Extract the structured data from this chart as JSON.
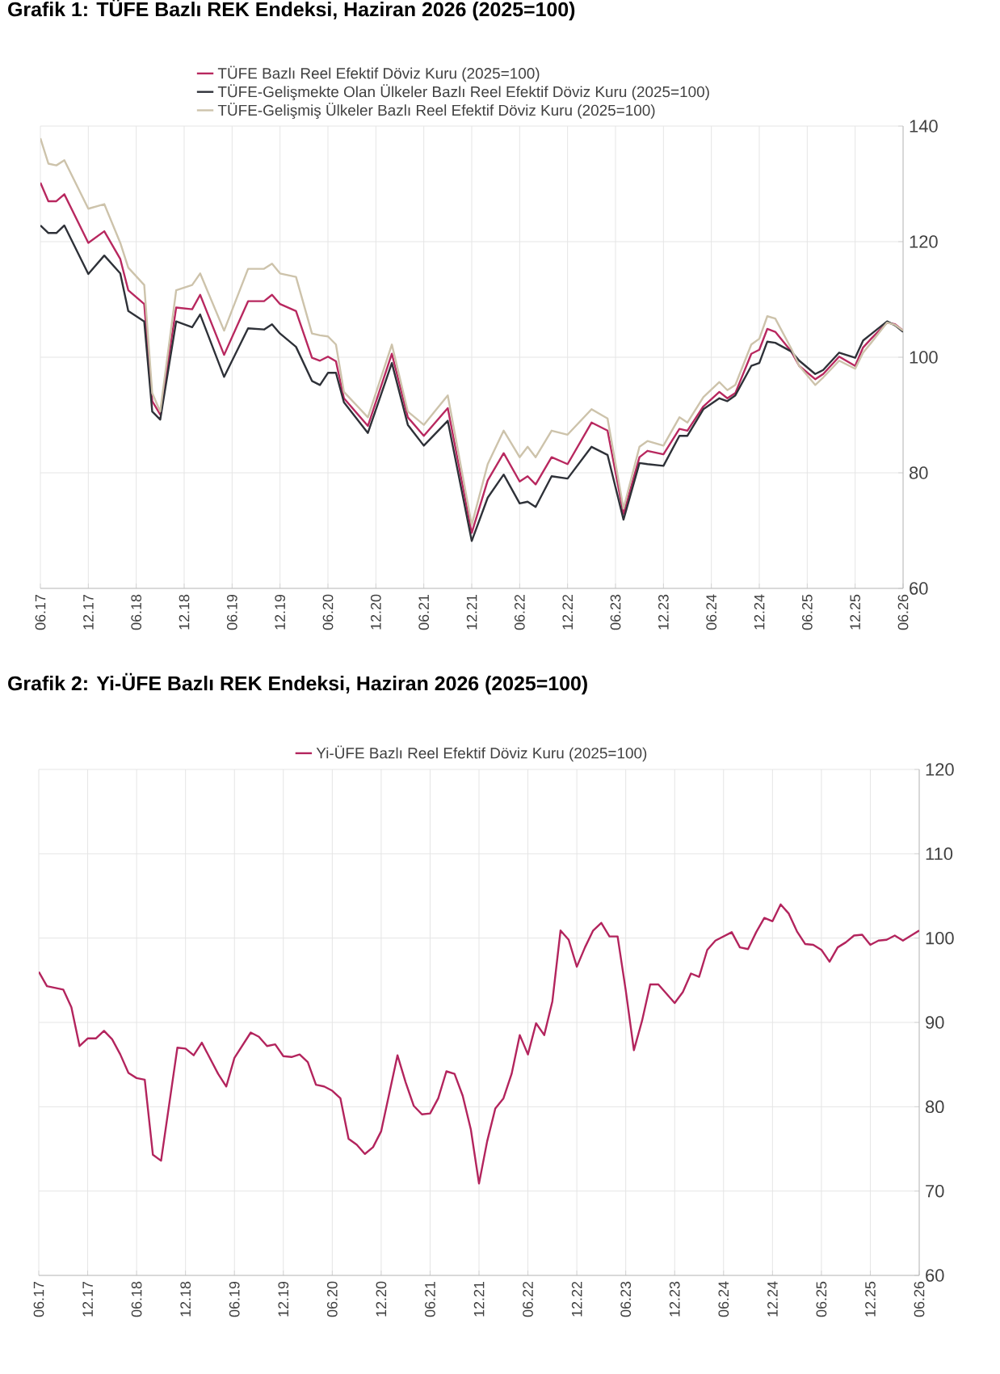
{
  "chart_data": [
    {
      "type": "line",
      "title": "Grafik 1: TÜFE Bazlı REK Endeksi, Haziran 2026 (2025=100)",
      "x": [
        "2017-06",
        "2017-07",
        "2017-08",
        "2017-09",
        "2017-12",
        "2018-02",
        "2018-04",
        "2018-05",
        "2018-07",
        "2018-08",
        "2018-09",
        "2018-11",
        "2019-01",
        "2019-02",
        "2019-05",
        "2019-08",
        "2019-10",
        "2019-11",
        "2019-12",
        "2020-02",
        "2020-04",
        "2020-05",
        "2020-06",
        "2020-07",
        "2020-08",
        "2020-11",
        "2021-02",
        "2021-04",
        "2021-06",
        "2021-09",
        "2021-12",
        "2022-02",
        "2022-04",
        "2022-06",
        "2022-07",
        "2022-08",
        "2022-10",
        "2022-12",
        "2023-03",
        "2023-05",
        "2023-07",
        "2023-09",
        "2023-10",
        "2023-12",
        "2024-02",
        "2024-03",
        "2024-05",
        "2024-07",
        "2024-08",
        "2024-09",
        "2024-11",
        "2024-12",
        "2025-01",
        "2025-02",
        "2025-04",
        "2025-05",
        "2025-07",
        "2025-08",
        "2025-10",
        "2025-12",
        "2026-01",
        "2026-02",
        "2026-04",
        "2026-05",
        "2026-06"
      ],
      "series": [
        {
          "name": "TÜFE  Bazlı Reel Efektif Döviz Kuru (2025=100)",
          "color": "#b8285f",
          "values": [
            130.2,
            127,
            127,
            128.2,
            119.8,
            121.8,
            117,
            111.6,
            109.2,
            92.4,
            90.1,
            108.6,
            108.3,
            110.8,
            100.4,
            109.7,
            109.7,
            110.8,
            109.2,
            108,
            99.9,
            99.4,
            100.1,
            99.3,
            92.9,
            88.1,
            100.6,
            89.6,
            86.4,
            91.2,
            69.6,
            78.7,
            83.4,
            78.5,
            79.4,
            78.0,
            82.7,
            81.5,
            88.7,
            87.3,
            72.9,
            82.7,
            83.8,
            83.2,
            87.6,
            87.3,
            91.5,
            94.0,
            92.9,
            93.8,
            100.6,
            101.3,
            104.9,
            104.4,
            101.0,
            98.5,
            96.2,
            97.1,
            100.1,
            98.5,
            101.7,
            103.2,
            106,
            105.7,
            104.6
          ]
        },
        {
          "name": "TÜFE-Gelişmekte Olan Ülkeler Bazlı Reel Efektif Döviz Kuru (2025=100)",
          "color": "#2e3138",
          "values": [
            122.8,
            121.5,
            121.5,
            122.8,
            114.4,
            117.6,
            114.5,
            108,
            106.2,
            90.6,
            89.2,
            106.2,
            105.2,
            107.4,
            96.6,
            105.0,
            104.8,
            105.7,
            104.1,
            101.8,
            95.9,
            95.2,
            97.3,
            97.3,
            92.2,
            86.9,
            99.0,
            88.3,
            84.7,
            89.0,
            68.2,
            75.7,
            79.7,
            74.7,
            75.0,
            74.1,
            79.4,
            79.0,
            84.5,
            83.1,
            71.9,
            81.7,
            81.5,
            81.2,
            86.4,
            86.4,
            91,
            92.9,
            92.4,
            93.4,
            98.5,
            99,
            102.7,
            102.5,
            101.0,
            99.4,
            97.1,
            97.8,
            100.8,
            99.9,
            102.9,
            104.0,
            106.2,
            105.5,
            104.4
          ]
        },
        {
          "name": "TÜFE-Gelişmiş Ülkeler Bazlı Reel Efektif Döviz Kuru (2025=100)",
          "color": "#cdc3ab",
          "values": [
            137.9,
            133.5,
            133.2,
            134.1,
            125.7,
            126.5,
            119.8,
            115.5,
            112.5,
            93.8,
            90.6,
            111.6,
            112.5,
            114.5,
            104.6,
            115.3,
            115.3,
            116.2,
            114.5,
            113.9,
            104.1,
            103.8,
            103.6,
            102.2,
            94.0,
            89.6,
            102.2,
            90.6,
            88.3,
            93.4,
            71,
            81.5,
            87.3,
            82.7,
            84.5,
            82.7,
            87.3,
            86.6,
            91.0,
            89.4,
            73.8,
            84.5,
            85.5,
            84.7,
            89.6,
            88.7,
            93.1,
            95.7,
            94.3,
            95.2,
            102.2,
            103.2,
            107.1,
            106.7,
            101.5,
            98.5,
            95.2,
            96.5,
            99.4,
            98,
            100.8,
            102.5,
            106.0,
            105.6,
            104.6
          ]
        }
      ],
      "xlim": [
        "2017-06",
        "2026-06"
      ],
      "xticks": [
        {
          "value": "2017-06",
          "label": "06.17"
        },
        {
          "value": "2017-12",
          "label": "12.17"
        },
        {
          "value": "2018-06",
          "label": "06.18"
        },
        {
          "value": "2018-12",
          "label": "12.18"
        },
        {
          "value": "2019-06",
          "label": "06.19"
        },
        {
          "value": "2019-12",
          "label": "12.19"
        },
        {
          "value": "2020-06",
          "label": "06.20"
        },
        {
          "value": "2020-12",
          "label": "12.20"
        },
        {
          "value": "2021-06",
          "label": "06.21"
        },
        {
          "value": "2021-12",
          "label": "12.21"
        },
        {
          "value": "2022-06",
          "label": "06.22"
        },
        {
          "value": "2022-12",
          "label": "12.22"
        },
        {
          "value": "2023-06",
          "label": "06.23"
        },
        {
          "value": "2023-12",
          "label": "12.23"
        },
        {
          "value": "2024-06",
          "label": "06.24"
        },
        {
          "value": "2024-12",
          "label": "12.24"
        },
        {
          "value": "2025-06",
          "label": "06.25"
        },
        {
          "value": "2025-12",
          "label": "12.25"
        },
        {
          "value": "2026-06",
          "label": "06.26"
        }
      ],
      "ylim": [
        60,
        140
      ],
      "yticks": [
        60,
        80,
        100,
        120,
        140
      ],
      "grid": true,
      "legend": "top"
    },
    {
      "type": "line",
      "title": "Grafik 2: Yi-ÜFE Bazlı REK Endeksi, Haziran 2026 (2025=100)",
      "x": [
        "2017-06",
        "2017-07",
        "2017-09",
        "2017-10",
        "2017-11",
        "2017-12",
        "2018-01",
        "2018-02",
        "2018-03",
        "2018-04",
        "2018-05",
        "2018-06",
        "2018-07",
        "2018-08",
        "2018-09",
        "2018-11",
        "2018-12",
        "2019-01",
        "2019-02",
        "2019-04",
        "2019-05",
        "2019-06",
        "2019-08",
        "2019-09",
        "2019-10",
        "2019-11",
        "2019-12",
        "2020-01",
        "2020-02",
        "2020-03",
        "2020-04",
        "2020-05",
        "2020-06",
        "2020-07",
        "2020-08",
        "2020-09",
        "2020-10",
        "2020-11",
        "2020-12",
        "2021-02",
        "2021-03",
        "2021-04",
        "2021-05",
        "2021-06",
        "2021-07",
        "2021-08",
        "2021-09",
        "2021-10",
        "2021-11",
        "2021-12",
        "2022-01",
        "2022-02",
        "2022-03",
        "2022-04",
        "2022-05",
        "2022-06",
        "2022-07",
        "2022-08",
        "2022-09",
        "2022-10",
        "2022-11",
        "2022-12",
        "2023-01",
        "2023-02",
        "2023-03",
        "2023-04",
        "2023-05",
        "2023-06",
        "2023-07",
        "2023-08",
        "2023-09",
        "2023-10",
        "2023-11",
        "2023-12",
        "2024-01",
        "2024-02",
        "2024-03",
        "2024-04",
        "2024-05",
        "2024-06",
        "2024-07",
        "2024-08",
        "2024-09",
        "2024-10",
        "2024-11",
        "2024-12",
        "2025-01",
        "2025-02",
        "2025-03",
        "2025-04",
        "2025-05",
        "2025-06",
        "2025-07",
        "2025-08",
        "2025-09",
        "2025-10",
        "2025-11",
        "2025-12",
        "2026-01",
        "2026-02",
        "2026-03",
        "2026-04",
        "2026-05",
        "2026-06"
      ],
      "series": [
        {
          "name": "Yi-ÜFE Bazlı Reel Efektif Döviz Kuru (2025=100)",
          "color": "#b3245d",
          "values": [
            96.0,
            94.3,
            93.9,
            91.8,
            87.2,
            88.1,
            88.1,
            89.0,
            88.0,
            86.2,
            84.0,
            83.4,
            83.2,
            74.3,
            73.6,
            87.0,
            86.9,
            86.1,
            87.6,
            83.9,
            82.4,
            85.8,
            88.8,
            88.3,
            87.2,
            87.4,
            86.0,
            85.9,
            86.2,
            85.3,
            82.6,
            82.4,
            81.9,
            81.0,
            76.2,
            75.5,
            74.4,
            75.2,
            77.1,
            86.1,
            82.9,
            80.1,
            79.1,
            79.2,
            81.0,
            84.2,
            83.9,
            81.3,
            77.3,
            70.9,
            75.9,
            79.8,
            81.0,
            83.9,
            88.5,
            86.2,
            89.9,
            88.5,
            92.5,
            100.9,
            99.8,
            96.6,
            98.9,
            100.9,
            101.8,
            100.2,
            100.2,
            93.8,
            86.7,
            90.2,
            94.5,
            94.5,
            93.4,
            92.3,
            93.6,
            95.8,
            95.4,
            98.6,
            99.7,
            100.2,
            100.7,
            98.9,
            98.7,
            100.7,
            102.4,
            102.0,
            104.0,
            102.9,
            100.8,
            99.3,
            99.2,
            98.6,
            97.2,
            98.9,
            99.5,
            100.3,
            100.4,
            99.2,
            99.7,
            99.8,
            100.3,
            99.7,
            100.3,
            100.9
          ]
        }
      ],
      "xlim": [
        "2017-06",
        "2026-06"
      ],
      "xticks": [
        {
          "value": "2017-06",
          "label": "06.17"
        },
        {
          "value": "2017-12",
          "label": "12.17"
        },
        {
          "value": "2018-06",
          "label": "06.18"
        },
        {
          "value": "2018-12",
          "label": "12.18"
        },
        {
          "value": "2019-06",
          "label": "06.19"
        },
        {
          "value": "2019-12",
          "label": "12.19"
        },
        {
          "value": "2020-06",
          "label": "06.20"
        },
        {
          "value": "2020-12",
          "label": "12.20"
        },
        {
          "value": "2021-06",
          "label": "06.21"
        },
        {
          "value": "2021-12",
          "label": "12.21"
        },
        {
          "value": "2022-06",
          "label": "06.22"
        },
        {
          "value": "2022-12",
          "label": "12.22"
        },
        {
          "value": "2023-06",
          "label": "06.23"
        },
        {
          "value": "2023-12",
          "label": "12.23"
        },
        {
          "value": "2024-06",
          "label": "06.24"
        },
        {
          "value": "2024-12",
          "label": "12.24"
        },
        {
          "value": "2025-06",
          "label": "06.25"
        },
        {
          "value": "2025-12",
          "label": "12.25"
        },
        {
          "value": "2026-06",
          "label": "06.26"
        }
      ],
      "ylim": [
        60,
        120
      ],
      "yticks": [
        60,
        70,
        80,
        90,
        100,
        110,
        120
      ],
      "grid": true,
      "legend": "top"
    }
  ]
}
